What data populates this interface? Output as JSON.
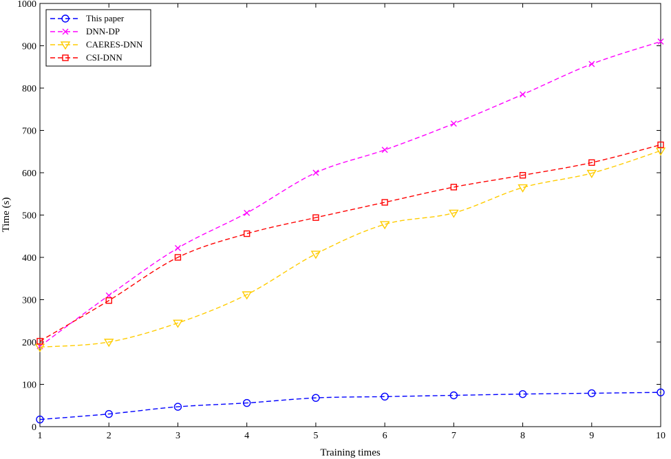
{
  "chart_data": {
    "type": "line",
    "xlabel": "Training times",
    "ylabel": "Time (s)",
    "xlim": [
      1,
      10
    ],
    "ylim": [
      0,
      1000
    ],
    "x_ticks": [
      "1",
      "2",
      "3",
      "4",
      "5",
      "6",
      "7",
      "8",
      "9",
      "10"
    ],
    "y_ticks": [
      "0",
      "100",
      "200",
      "300",
      "400",
      "500",
      "600",
      "700",
      "800",
      "900",
      "1000"
    ],
    "grid": false,
    "legend_position": "top-left",
    "x": [
      1,
      2,
      3,
      4,
      5,
      6,
      7,
      8,
      9,
      10
    ],
    "series": [
      {
        "name": "This paper",
        "color": "#0000ff",
        "marker": "circle",
        "values": [
          17,
          30,
          47,
          56,
          68,
          71,
          74,
          77,
          79,
          81
        ]
      },
      {
        "name": "DNN-DP",
        "color": "#ff00ff",
        "marker": "x",
        "values": [
          190,
          310,
          422,
          505,
          600,
          654,
          716,
          785,
          857,
          910
        ]
      },
      {
        "name": "CAERES-DNN",
        "color": "#ffcc00",
        "marker": "triangle-down",
        "values": [
          188,
          200,
          245,
          312,
          408,
          478,
          505,
          565,
          599,
          652
        ]
      },
      {
        "name": "CSI-DNN",
        "color": "#ff0000",
        "marker": "square",
        "values": [
          202,
          298,
          400,
          456,
          494,
          530,
          566,
          594,
          624,
          666
        ]
      }
    ]
  }
}
